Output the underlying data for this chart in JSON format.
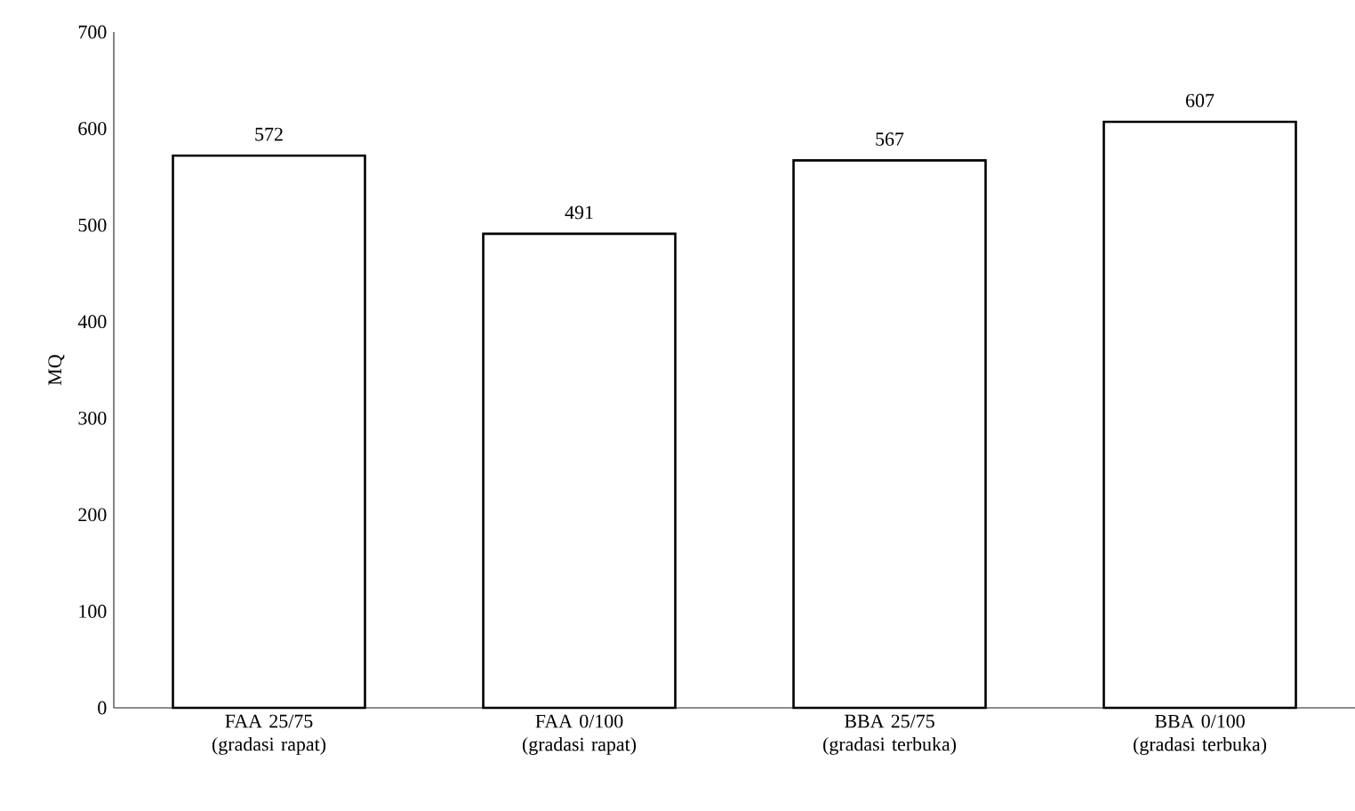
{
  "chart_data": {
    "type": "bar",
    "ylabel": "MQ",
    "categories": [
      "FAA 25/75 (gradasi rapat)",
      "FAA 0/100 (gradasi rapat)",
      "BBA 25/75 (gradasi terbuka)",
      "BBA 0/100 (gradasi terbuka)"
    ],
    "values": [
      572,
      491,
      567,
      607
    ],
    "color": "#000000",
    "ylim": [
      0,
      700
    ],
    "yticks": [
      0,
      100,
      200,
      300,
      400,
      500,
      600,
      700
    ],
    "grid": false,
    "data_labels": true
  }
}
